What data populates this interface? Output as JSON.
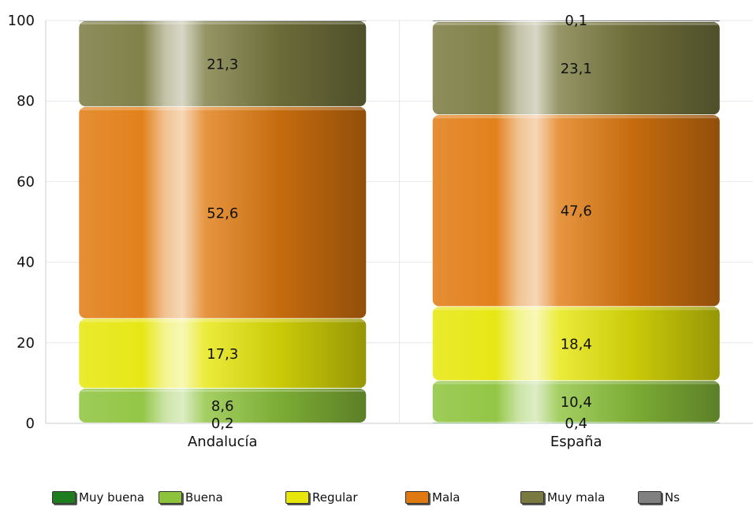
{
  "chart_data": {
    "type": "bar",
    "stacked": true,
    "categories": [
      "Andalucía",
      "España"
    ],
    "ylim": [
      0,
      100
    ],
    "yticks": [
      0,
      20,
      40,
      60,
      80,
      100
    ],
    "grid": true,
    "legend_position": "bottom",
    "series": [
      {
        "name": "Muy buena",
        "color": "#1e7d1e",
        "values": [
          0,
          0.1
        ]
      },
      {
        "name": "Buena",
        "color": "#8dc33c",
        "values": [
          8.6,
          10.4
        ]
      },
      {
        "name": "Regular",
        "color": "#e6e60a",
        "values": [
          17.3,
          18.4
        ]
      },
      {
        "name": "Mala",
        "color": "#e07a10",
        "values": [
          52.6,
          47.6
        ]
      },
      {
        "name": "Muy mala",
        "color": "#7a7a40",
        "values": [
          21.3,
          23.1
        ]
      },
      {
        "name": "Ns",
        "color": "#808080",
        "values": [
          0.2,
          0.4
        ]
      }
    ],
    "data_labels": [
      {
        "series": 5,
        "category": 0,
        "text": "0,2"
      },
      {
        "series": 4,
        "category": 0,
        "text": "21,3"
      },
      {
        "series": 3,
        "category": 0,
        "text": "52,6"
      },
      {
        "series": 2,
        "category": 0,
        "text": "17,3"
      },
      {
        "series": 1,
        "category": 0,
        "text": "8,6"
      },
      {
        "series": 5,
        "category": 1,
        "text": "0,4"
      },
      {
        "series": 4,
        "category": 1,
        "text": "23,1"
      },
      {
        "series": 3,
        "category": 1,
        "text": "47,6"
      },
      {
        "series": 2,
        "category": 1,
        "text": "18,4"
      },
      {
        "series": 1,
        "category": 1,
        "text": "10,4"
      },
      {
        "series": 0,
        "category": 1,
        "text": "0,1"
      }
    ]
  }
}
